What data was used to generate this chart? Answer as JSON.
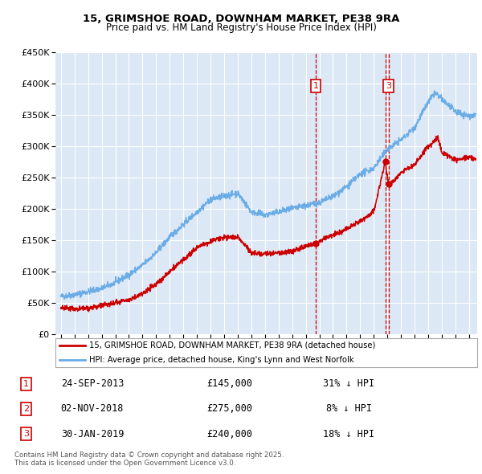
{
  "title_line1": "15, GRIMSHOE ROAD, DOWNHAM MARKET, PE38 9RA",
  "title_line2": "Price paid vs. HM Land Registry's House Price Index (HPI)",
  "legend_line1": "15, GRIMSHOE ROAD, DOWNHAM MARKET, PE38 9RA (detached house)",
  "legend_line2": "HPI: Average price, detached house, King's Lynn and West Norfolk",
  "footer_line1": "Contains HM Land Registry data © Crown copyright and database right 2025.",
  "footer_line2": "This data is licensed under the Open Government Licence v3.0.",
  "transactions": [
    {
      "num": 1,
      "date": "24-SEP-2013",
      "price": 145000,
      "hpi_diff": "31% ↓ HPI",
      "date_dec": 2013.73,
      "show_box": true
    },
    {
      "num": 2,
      "date": "02-NOV-2018",
      "price": 275000,
      "hpi_diff": "8% ↓ HPI",
      "date_dec": 2018.84,
      "show_box": false
    },
    {
      "num": 3,
      "date": "30-JAN-2019",
      "price": 240000,
      "hpi_diff": "18% ↓ HPI",
      "date_dec": 2019.08,
      "show_box": true
    }
  ],
  "red_color": "#cc0000",
  "blue_color": "#6aace6",
  "dashed_color": "#cc0000",
  "background_plot": "#dce8f5",
  "background_fig": "#ffffff",
  "ylim_max": 450000,
  "ytick_interval": 50000,
  "xlim_start": 1994.6,
  "xlim_end": 2025.6,
  "blue_anchors_t": [
    1995,
    1996,
    1997,
    1998,
    1999,
    2000,
    2001,
    2002,
    2003,
    2004,
    2005,
    2006,
    2007,
    2008,
    2009,
    2010,
    2011,
    2012,
    2013,
    2014,
    2015,
    2016,
    2017,
    2018,
    2019,
    2020,
    2021,
    2022,
    2022.5,
    2023,
    2024,
    2025,
    2025.5
  ],
  "blue_anchors_v": [
    60000,
    63000,
    68000,
    73000,
    82000,
    95000,
    110000,
    130000,
    155000,
    175000,
    195000,
    215000,
    220000,
    225000,
    195000,
    190000,
    195000,
    200000,
    205000,
    210000,
    220000,
    235000,
    255000,
    265000,
    295000,
    310000,
    330000,
    370000,
    385000,
    375000,
    355000,
    348000,
    350000
  ],
  "red_anchors_t": [
    1995,
    1996,
    1997,
    1998,
    1999,
    2000,
    2001,
    2002,
    2003,
    2004,
    2005,
    2006,
    2007,
    2008,
    2009,
    2010,
    2011,
    2012,
    2013,
    2013.73,
    2014,
    2015,
    2016,
    2017,
    2018,
    2018.84,
    2019.08,
    2019.5,
    2020,
    2021,
    2022,
    2022.7,
    2023,
    2024,
    2025,
    2025.5
  ],
  "red_anchors_v": [
    42000,
    40000,
    42000,
    45000,
    50000,
    55000,
    65000,
    80000,
    100000,
    118000,
    138000,
    148000,
    155000,
    155000,
    130000,
    128000,
    130000,
    132000,
    140000,
    145000,
    148000,
    158000,
    168000,
    180000,
    196000,
    275000,
    240000,
    245000,
    258000,
    270000,
    300000,
    313000,
    290000,
    278000,
    282000,
    280000
  ],
  "noise_seed": 42,
  "noise_blue": 2500,
  "noise_red": 2000,
  "points_per_year": 52
}
